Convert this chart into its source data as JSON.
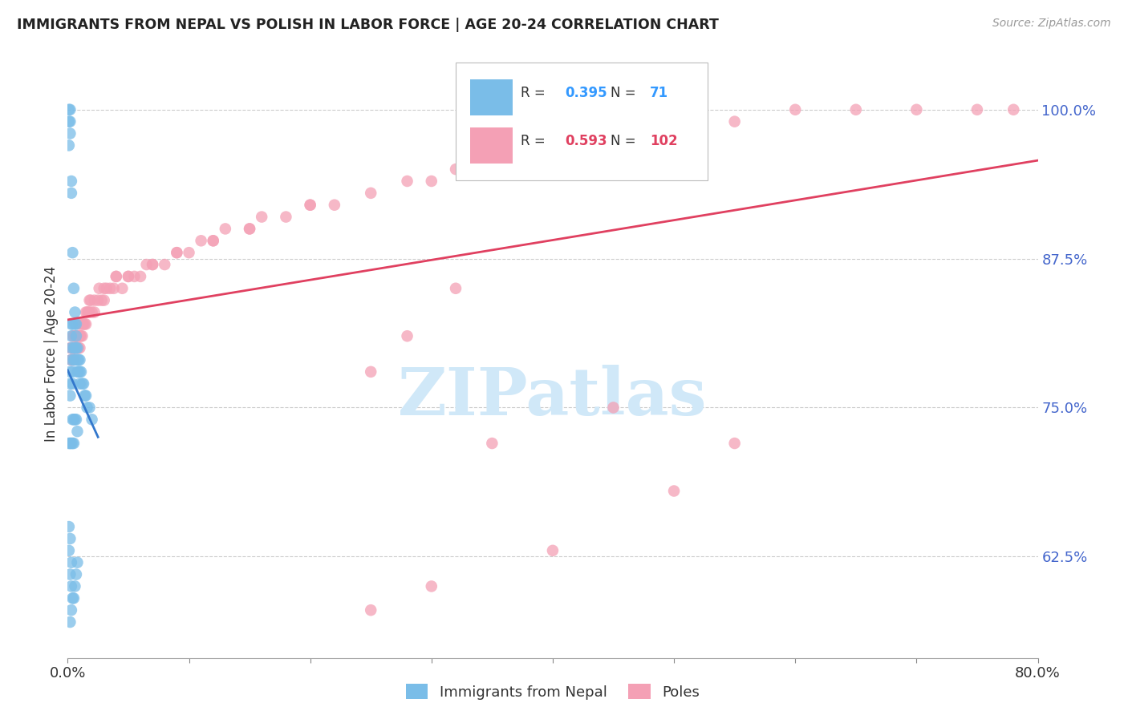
{
  "title": "IMMIGRANTS FROM NEPAL VS POLISH IN LABOR FORCE | AGE 20-24 CORRELATION CHART",
  "source": "Source: ZipAtlas.com",
  "ylabel": "In Labor Force | Age 20-24",
  "y_ticks": [
    0.625,
    0.75,
    0.875,
    1.0
  ],
  "y_tick_labels": [
    "62.5%",
    "75.0%",
    "87.5%",
    "100.0%"
  ],
  "x_ticks": [
    0.0,
    0.1,
    0.2,
    0.3,
    0.4,
    0.5,
    0.6,
    0.7,
    0.8
  ],
  "x_tick_labels": [
    "0.0%",
    "",
    "",
    "",
    "",
    "",
    "",
    "",
    "80.0%"
  ],
  "xlim": [
    0.0,
    0.8
  ],
  "ylim": [
    0.54,
    1.05
  ],
  "nepal_R": 0.395,
  "nepal_N": 71,
  "poles_R": 0.593,
  "poles_N": 102,
  "nepal_color": "#7abde8",
  "poles_color": "#f4a0b5",
  "nepal_line_color": "#3377cc",
  "poles_line_color": "#e04060",
  "watermark_color": "#d0e8f8",
  "background_color": "#ffffff",
  "grid_color": "#cccccc",
  "nepal_x": [
    0.001,
    0.001,
    0.001,
    0.002,
    0.002,
    0.002,
    0.002,
    0.002,
    0.002,
    0.003,
    0.003,
    0.003,
    0.003,
    0.003,
    0.003,
    0.004,
    0.004,
    0.004,
    0.004,
    0.005,
    0.005,
    0.005,
    0.006,
    0.006,
    0.006,
    0.006,
    0.007,
    0.007,
    0.007,
    0.008,
    0.008,
    0.008,
    0.009,
    0.009,
    0.01,
    0.01,
    0.01,
    0.011,
    0.012,
    0.013,
    0.014,
    0.015,
    0.016,
    0.018,
    0.02,
    0.001,
    0.001,
    0.002,
    0.002,
    0.003,
    0.003,
    0.004,
    0.005,
    0.006,
    0.007,
    0.008,
    0.001,
    0.002,
    0.003,
    0.004,
    0.005,
    0.002,
    0.003,
    0.004,
    0.005,
    0.006,
    0.007,
    0.008
  ],
  "nepal_y": [
    0.99,
    1.0,
    0.97,
    1.0,
    0.99,
    0.98,
    0.78,
    0.77,
    0.76,
    0.94,
    0.93,
    0.82,
    0.81,
    0.8,
    0.79,
    0.88,
    0.82,
    0.78,
    0.77,
    0.85,
    0.8,
    0.79,
    0.83,
    0.82,
    0.8,
    0.79,
    0.82,
    0.81,
    0.8,
    0.8,
    0.79,
    0.78,
    0.79,
    0.78,
    0.79,
    0.78,
    0.77,
    0.78,
    0.77,
    0.77,
    0.76,
    0.76,
    0.75,
    0.75,
    0.74,
    0.65,
    0.63,
    0.64,
    0.61,
    0.62,
    0.6,
    0.74,
    0.74,
    0.74,
    0.74,
    0.73,
    0.72,
    0.72,
    0.72,
    0.72,
    0.72,
    0.57,
    0.58,
    0.59,
    0.59,
    0.6,
    0.61,
    0.62
  ],
  "poles_x": [
    0.002,
    0.003,
    0.003,
    0.004,
    0.004,
    0.005,
    0.005,
    0.005,
    0.006,
    0.006,
    0.007,
    0.007,
    0.008,
    0.008,
    0.009,
    0.009,
    0.01,
    0.01,
    0.011,
    0.012,
    0.013,
    0.014,
    0.015,
    0.016,
    0.017,
    0.018,
    0.019,
    0.02,
    0.022,
    0.025,
    0.028,
    0.03,
    0.032,
    0.035,
    0.038,
    0.04,
    0.045,
    0.05,
    0.055,
    0.06,
    0.065,
    0.07,
    0.08,
    0.09,
    0.1,
    0.11,
    0.12,
    0.13,
    0.15,
    0.16,
    0.18,
    0.2,
    0.22,
    0.25,
    0.28,
    0.3,
    0.32,
    0.35,
    0.38,
    0.4,
    0.42,
    0.45,
    0.5,
    0.55,
    0.6,
    0.65,
    0.7,
    0.75,
    0.78,
    0.003,
    0.005,
    0.007,
    0.009,
    0.011,
    0.004,
    0.006,
    0.008,
    0.01,
    0.012,
    0.015,
    0.018,
    0.022,
    0.026,
    0.03,
    0.04,
    0.05,
    0.07,
    0.09,
    0.12,
    0.15,
    0.2,
    0.25,
    0.3,
    0.4,
    0.5,
    0.55,
    0.35,
    0.45,
    0.25,
    0.28,
    0.32
  ],
  "poles_y": [
    0.8,
    0.79,
    0.8,
    0.8,
    0.81,
    0.8,
    0.79,
    0.81,
    0.8,
    0.81,
    0.8,
    0.81,
    0.8,
    0.81,
    0.81,
    0.8,
    0.8,
    0.81,
    0.81,
    0.81,
    0.82,
    0.82,
    0.82,
    0.83,
    0.83,
    0.83,
    0.84,
    0.83,
    0.83,
    0.84,
    0.84,
    0.84,
    0.85,
    0.85,
    0.85,
    0.86,
    0.85,
    0.86,
    0.86,
    0.86,
    0.87,
    0.87,
    0.87,
    0.88,
    0.88,
    0.89,
    0.89,
    0.9,
    0.9,
    0.91,
    0.91,
    0.92,
    0.92,
    0.93,
    0.94,
    0.94,
    0.95,
    0.96,
    0.96,
    0.97,
    0.97,
    0.98,
    0.99,
    0.99,
    1.0,
    1.0,
    1.0,
    1.0,
    1.0,
    0.79,
    0.8,
    0.81,
    0.82,
    0.82,
    0.79,
    0.8,
    0.8,
    0.81,
    0.82,
    0.83,
    0.84,
    0.84,
    0.85,
    0.85,
    0.86,
    0.86,
    0.87,
    0.88,
    0.89,
    0.9,
    0.92,
    0.58,
    0.6,
    0.63,
    0.68,
    0.72,
    0.72,
    0.75,
    0.78,
    0.81,
    0.85
  ]
}
